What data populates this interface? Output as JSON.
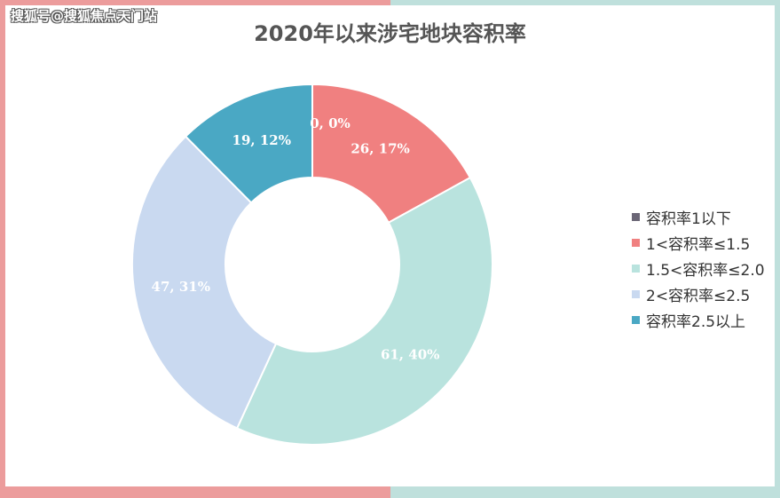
{
  "watermark": "搜狐号@搜狐焦点天门站",
  "chart_data": {
    "type": "pie",
    "title": "2020年以来涉宅地块容积率",
    "series": [
      {
        "name": "容积率1以下",
        "value": 0,
        "percent": "0%",
        "color": "#6b6676"
      },
      {
        "name": "1<容积率≤1.5",
        "value": 26,
        "percent": "17%",
        "color": "#f08080"
      },
      {
        "name": "1.5<容积率≤2.0",
        "value": 61,
        "percent": "40%",
        "color": "#b9e3de"
      },
      {
        "name": "2<容积率≤2.5",
        "value": 47,
        "percent": "31%",
        "color": "#c9d9f0"
      },
      {
        "name": "容积率2.5以上",
        "value": 19,
        "percent": "12%",
        "color": "#4aa8c4"
      }
    ],
    "legend_position": "right"
  }
}
